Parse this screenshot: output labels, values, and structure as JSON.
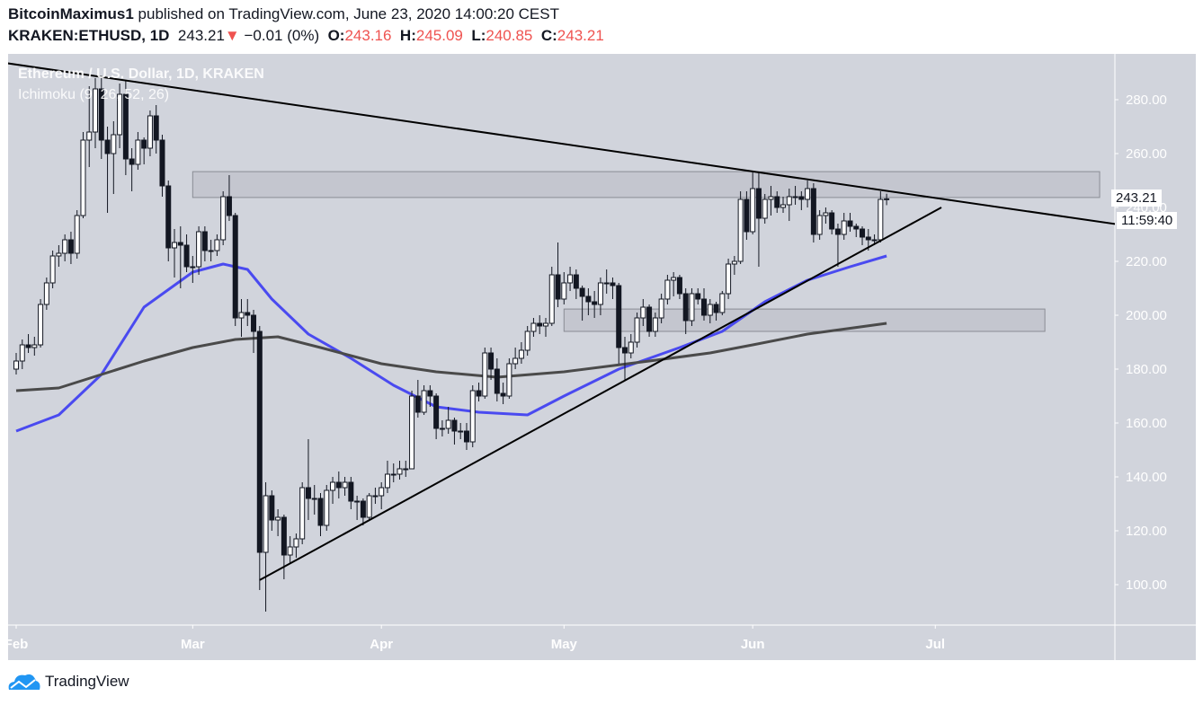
{
  "header": {
    "author": "BitcoinMaximus1",
    "published": "published on TradingView.com, June 23, 2020 14:00:20 CEST",
    "symbol": "KRAKEN:ETHUSD, 1D",
    "last": "243.21",
    "change": "−0.01 (0%)",
    "o_label": "O:",
    "o": "243.16",
    "h_label": "H:",
    "h": "245.09",
    "l_label": "L:",
    "l": "240.85",
    "c_label": "C:",
    "c": "243.21"
  },
  "legend": {
    "title": "Ethereum / U.S. Dollar, 1D, KRAKEN",
    "indicator": "Ichimoku (9, 26, 52, 26)"
  },
  "price_label": "243.21",
  "countdown": "11:59:40",
  "brand": "TradingView",
  "colors": {
    "background": "#d1d4dc",
    "up": "#ffffff",
    "down": "#131722",
    "ma_fast": "#4a4af0",
    "ma_slow": "#4a4a4a",
    "trendline": "#000000",
    "box": "#c4c6cf",
    "change_down": "#ef5350"
  },
  "chart_data": {
    "type": "candlestick",
    "ylim": [
      87,
      297
    ],
    "y_ticks": [
      100,
      120,
      140,
      160,
      180,
      200,
      220,
      240,
      260,
      280
    ],
    "x_range": [
      "2020-01-30",
      "2020-07-31"
    ],
    "x_ticks": [
      {
        "date": "2020-02-01",
        "label": "Feb"
      },
      {
        "date": "2020-03-01",
        "label": "Mar"
      },
      {
        "date": "2020-04-01",
        "label": "Apr"
      },
      {
        "date": "2020-05-01",
        "label": "May"
      },
      {
        "date": "2020-06-01",
        "label": "Jun"
      },
      {
        "date": "2020-07-01",
        "label": "Jul"
      }
    ],
    "candles": [
      [
        "2020-02-01",
        180,
        186,
        178,
        183
      ],
      [
        "2020-02-02",
        183,
        191,
        180,
        189
      ],
      [
        "2020-02-03",
        189,
        193,
        186,
        188
      ],
      [
        "2020-02-04",
        188,
        192,
        185,
        189
      ],
      [
        "2020-02-05",
        189,
        206,
        188,
        204
      ],
      [
        "2020-02-06",
        204,
        214,
        202,
        212
      ],
      [
        "2020-02-07",
        212,
        224,
        210,
        222
      ],
      [
        "2020-02-08",
        222,
        226,
        218,
        223
      ],
      [
        "2020-02-09",
        223,
        230,
        220,
        228
      ],
      [
        "2020-02-10",
        228,
        231,
        219,
        223
      ],
      [
        "2020-02-11",
        223,
        239,
        221,
        237
      ],
      [
        "2020-02-12",
        237,
        268,
        236,
        265
      ],
      [
        "2020-02-13",
        265,
        285,
        255,
        268
      ],
      [
        "2020-02-14",
        268,
        288,
        262,
        284
      ],
      [
        "2020-02-15",
        284,
        288,
        258,
        265
      ],
      [
        "2020-02-16",
        265,
        270,
        238,
        260
      ],
      [
        "2020-02-17",
        260,
        272,
        245,
        267
      ],
      [
        "2020-02-18",
        267,
        286,
        262,
        282
      ],
      [
        "2020-02-19",
        282,
        287,
        252,
        258
      ],
      [
        "2020-02-20",
        258,
        262,
        246,
        256
      ],
      [
        "2020-02-21",
        256,
        268,
        254,
        265
      ],
      [
        "2020-02-22",
        265,
        266,
        256,
        262
      ],
      [
        "2020-02-23",
        262,
        276,
        259,
        274
      ],
      [
        "2020-02-24",
        274,
        278,
        260,
        265
      ],
      [
        "2020-02-25",
        265,
        267,
        244,
        248
      ],
      [
        "2020-02-26",
        248,
        250,
        220,
        225
      ],
      [
        "2020-02-27",
        225,
        232,
        214,
        227
      ],
      [
        "2020-02-28",
        227,
        233,
        210,
        226
      ],
      [
        "2020-02-29",
        226,
        230,
        216,
        218
      ],
      [
        "2020-03-01",
        218,
        222,
        212,
        218
      ],
      [
        "2020-03-02",
        218,
        233,
        215,
        231
      ],
      [
        "2020-03-03",
        231,
        233,
        220,
        224
      ],
      [
        "2020-03-04",
        224,
        228,
        220,
        224
      ],
      [
        "2020-03-05",
        224,
        230,
        222,
        228
      ],
      [
        "2020-03-06",
        228,
        246,
        226,
        244
      ],
      [
        "2020-03-07",
        244,
        252,
        235,
        237
      ],
      [
        "2020-03-08",
        237,
        238,
        196,
        199
      ],
      [
        "2020-03-09",
        199,
        206,
        192,
        201
      ],
      [
        "2020-03-10",
        201,
        206,
        196,
        200
      ],
      [
        "2020-03-11",
        200,
        202,
        186,
        194
      ],
      [
        "2020-03-12",
        194,
        196,
        98,
        112
      ],
      [
        "2020-03-13",
        112,
        138,
        90,
        133
      ],
      [
        "2020-03-14",
        133,
        135,
        120,
        124
      ],
      [
        "2020-03-15",
        124,
        128,
        118,
        125
      ],
      [
        "2020-03-16",
        125,
        126,
        102,
        111
      ],
      [
        "2020-03-17",
        111,
        118,
        108,
        114
      ],
      [
        "2020-03-18",
        114,
        119,
        110,
        117
      ],
      [
        "2020-03-19",
        117,
        138,
        115,
        136
      ],
      [
        "2020-03-20",
        136,
        154,
        124,
        132
      ],
      [
        "2020-03-21",
        132,
        137,
        126,
        132
      ],
      [
        "2020-03-22",
        132,
        134,
        118,
        122
      ],
      [
        "2020-03-23",
        122,
        137,
        120,
        135
      ],
      [
        "2020-03-24",
        135,
        140,
        130,
        138
      ],
      [
        "2020-03-25",
        138,
        142,
        132,
        136
      ],
      [
        "2020-03-26",
        136,
        140,
        133,
        138
      ],
      [
        "2020-03-27",
        138,
        140,
        128,
        131
      ],
      [
        "2020-03-28",
        131,
        133,
        124,
        131
      ],
      [
        "2020-03-29",
        131,
        132,
        122,
        125
      ],
      [
        "2020-03-30",
        125,
        134,
        124,
        133
      ],
      [
        "2020-03-31",
        133,
        136,
        130,
        133
      ],
      [
        "2020-04-01",
        133,
        138,
        128,
        136
      ],
      [
        "2020-04-02",
        136,
        146,
        134,
        141
      ],
      [
        "2020-04-03",
        141,
        145,
        138,
        141
      ],
      [
        "2020-04-04",
        141,
        146,
        139,
        143
      ],
      [
        "2020-04-05",
        143,
        146,
        140,
        143
      ],
      [
        "2020-04-06",
        143,
        172,
        143,
        170
      ],
      [
        "2020-04-07",
        170,
        176,
        162,
        164
      ],
      [
        "2020-04-08",
        164,
        174,
        163,
        172
      ],
      [
        "2020-04-09",
        172,
        174,
        166,
        170
      ],
      [
        "2020-04-10",
        170,
        171,
        154,
        158
      ],
      [
        "2020-04-11",
        158,
        161,
        155,
        158
      ],
      [
        "2020-04-12",
        158,
        166,
        156,
        161
      ],
      [
        "2020-04-13",
        161,
        162,
        152,
        157
      ],
      [
        "2020-04-14",
        157,
        160,
        154,
        157
      ],
      [
        "2020-04-15",
        157,
        160,
        150,
        153
      ],
      [
        "2020-04-16",
        153,
        174,
        151,
        172
      ],
      [
        "2020-04-17",
        172,
        175,
        168,
        170
      ],
      [
        "2020-04-18",
        170,
        188,
        169,
        186
      ],
      [
        "2020-04-19",
        186,
        188,
        176,
        180
      ],
      [
        "2020-04-20",
        180,
        184,
        168,
        171
      ],
      [
        "2020-04-21",
        171,
        175,
        167,
        170
      ],
      [
        "2020-04-22",
        170,
        184,
        169,
        182
      ],
      [
        "2020-04-23",
        182,
        188,
        180,
        184
      ],
      [
        "2020-04-24",
        184,
        190,
        182,
        187
      ],
      [
        "2020-04-25",
        187,
        196,
        185,
        194
      ],
      [
        "2020-04-26",
        194,
        199,
        192,
        197
      ],
      [
        "2020-04-27",
        197,
        200,
        193,
        196
      ],
      [
        "2020-04-28",
        196,
        199,
        192,
        197
      ],
      [
        "2020-04-29",
        197,
        218,
        196,
        215
      ],
      [
        "2020-04-30",
        215,
        227,
        203,
        206
      ],
      [
        "2020-05-01",
        206,
        216,
        204,
        212
      ],
      [
        "2020-05-02",
        212,
        218,
        209,
        215
      ],
      [
        "2020-05-03",
        215,
        217,
        206,
        210
      ],
      [
        "2020-05-04",
        210,
        211,
        198,
        207
      ],
      [
        "2020-05-05",
        207,
        210,
        200,
        205
      ],
      [
        "2020-05-06",
        205,
        209,
        199,
        204
      ],
      [
        "2020-05-07",
        204,
        214,
        200,
        212
      ],
      [
        "2020-05-08",
        212,
        217,
        208,
        212
      ],
      [
        "2020-05-09",
        212,
        214,
        206,
        211
      ],
      [
        "2020-05-10",
        211,
        212,
        182,
        188
      ],
      [
        "2020-05-11",
        188,
        192,
        176,
        186
      ],
      [
        "2020-05-12",
        186,
        193,
        184,
        190
      ],
      [
        "2020-05-13",
        190,
        201,
        188,
        199
      ],
      [
        "2020-05-14",
        199,
        206,
        196,
        203
      ],
      [
        "2020-05-15",
        203,
        204,
        192,
        194
      ],
      [
        "2020-05-16",
        194,
        201,
        192,
        199
      ],
      [
        "2020-05-17",
        199,
        208,
        197,
        206
      ],
      [
        "2020-05-18",
        206,
        215,
        204,
        213
      ],
      [
        "2020-05-19",
        213,
        216,
        207,
        214
      ],
      [
        "2020-05-20",
        214,
        215,
        206,
        208
      ],
      [
        "2020-05-21",
        208,
        210,
        193,
        198
      ],
      [
        "2020-05-22",
        198,
        210,
        196,
        208
      ],
      [
        "2020-05-23",
        208,
        210,
        204,
        206
      ],
      [
        "2020-05-24",
        206,
        210,
        198,
        200
      ],
      [
        "2020-05-25",
        200,
        206,
        197,
        204
      ],
      [
        "2020-05-26",
        204,
        205,
        198,
        201
      ],
      [
        "2020-05-27",
        201,
        209,
        200,
        208
      ],
      [
        "2020-05-28",
        208,
        221,
        206,
        219
      ],
      [
        "2020-05-29",
        219,
        222,
        215,
        220
      ],
      [
        "2020-05-30",
        220,
        246,
        219,
        243
      ],
      [
        "2020-05-31",
        243,
        246,
        228,
        231
      ],
      [
        "2020-06-01",
        231,
        253,
        230,
        247
      ],
      [
        "2020-06-02",
        247,
        253,
        218,
        236
      ],
      [
        "2020-06-03",
        236,
        245,
        234,
        243
      ],
      [
        "2020-06-04",
        243,
        248,
        237,
        244
      ],
      [
        "2020-06-05",
        244,
        246,
        238,
        240
      ],
      [
        "2020-06-06",
        240,
        244,
        238,
        241
      ],
      [
        "2020-06-07",
        241,
        247,
        235,
        244
      ],
      [
        "2020-06-08",
        244,
        248,
        241,
        244
      ],
      [
        "2020-06-09",
        244,
        246,
        239,
        243
      ],
      [
        "2020-06-10",
        243,
        250,
        240,
        247
      ],
      [
        "2020-06-11",
        247,
        249,
        227,
        230
      ],
      [
        "2020-06-12",
        230,
        239,
        228,
        237
      ],
      [
        "2020-06-13",
        237,
        240,
        234,
        238
      ],
      [
        "2020-06-14",
        238,
        239,
        230,
        232
      ],
      [
        "2020-06-15",
        232,
        234,
        218,
        230
      ],
      [
        "2020-06-16",
        230,
        238,
        228,
        235
      ],
      [
        "2020-06-17",
        235,
        238,
        231,
        233
      ],
      [
        "2020-06-18",
        233,
        234,
        229,
        232
      ],
      [
        "2020-06-19",
        232,
        233,
        226,
        229
      ],
      [
        "2020-06-20",
        229,
        232,
        224,
        228
      ],
      [
        "2020-06-21",
        228,
        230,
        226,
        228
      ],
      [
        "2020-06-22",
        228,
        246,
        227,
        243
      ],
      [
        "2020-06-23",
        243.16,
        245.09,
        240.85,
        243.21
      ]
    ],
    "series": [
      {
        "role": "ma_fast",
        "color": "#4a4af0",
        "points": [
          [
            "2020-02-01",
            157
          ],
          [
            "2020-02-08",
            163
          ],
          [
            "2020-02-15",
            178
          ],
          [
            "2020-02-22",
            203
          ],
          [
            "2020-03-01",
            216
          ],
          [
            "2020-03-06",
            219
          ],
          [
            "2020-03-10",
            217
          ],
          [
            "2020-03-14",
            206
          ],
          [
            "2020-03-20",
            193
          ],
          [
            "2020-03-27",
            184
          ],
          [
            "2020-04-03",
            174
          ],
          [
            "2020-04-10",
            166
          ],
          [
            "2020-04-17",
            164
          ],
          [
            "2020-04-25",
            163
          ],
          [
            "2020-05-01",
            170
          ],
          [
            "2020-05-10",
            180
          ],
          [
            "2020-05-20",
            188
          ],
          [
            "2020-05-27",
            194
          ],
          [
            "2020-06-03",
            205
          ],
          [
            "2020-06-10",
            213
          ],
          [
            "2020-06-17",
            218
          ],
          [
            "2020-06-23",
            222
          ]
        ]
      },
      {
        "role": "ma_slow",
        "color": "#4a4a4a",
        "points": [
          [
            "2020-02-01",
            172
          ],
          [
            "2020-02-08",
            173
          ],
          [
            "2020-02-15",
            178
          ],
          [
            "2020-02-22",
            183
          ],
          [
            "2020-03-01",
            188
          ],
          [
            "2020-03-08",
            191
          ],
          [
            "2020-03-15",
            192
          ],
          [
            "2020-03-22",
            188
          ],
          [
            "2020-04-01",
            182
          ],
          [
            "2020-04-10",
            179
          ],
          [
            "2020-04-20",
            177
          ],
          [
            "2020-05-01",
            179
          ],
          [
            "2020-05-15",
            183
          ],
          [
            "2020-05-25",
            186
          ],
          [
            "2020-06-01",
            189
          ],
          [
            "2020-06-10",
            193
          ],
          [
            "2020-06-23",
            197
          ]
        ]
      }
    ],
    "trendlines": [
      {
        "from": [
          "2020-01-30",
          293.7
        ],
        "to": [
          "2020-07-31",
          233.7
        ]
      },
      {
        "from": [
          "2020-03-12",
          101.7
        ],
        "to": [
          "2020-07-02",
          240
        ]
      }
    ],
    "boxes": [
      {
        "from": "2020-03-01",
        "to": "2020-07-28",
        "low": 243.7,
        "high": 253.3
      },
      {
        "from": "2020-05-01",
        "to": "2020-07-19",
        "low": 194,
        "high": 202.3
      }
    ]
  }
}
